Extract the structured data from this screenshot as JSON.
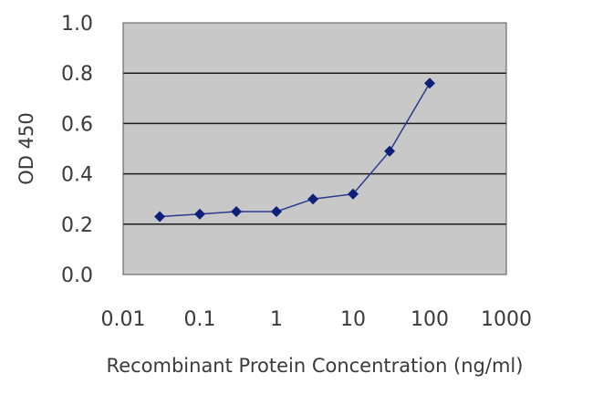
{
  "chart_data": {
    "type": "line",
    "title": "",
    "xlabel": "Recombinant Protein Concentration (ng/ml)",
    "ylabel": "OD 450",
    "x_scale": "log",
    "xlim": [
      0.01,
      1000
    ],
    "ylim": [
      0,
      1.0
    ],
    "x_tick_labels": [
      "0.01",
      "0.1",
      "1",
      "10",
      "100",
      "1000"
    ],
    "y_tick_labels": [
      "0.0",
      "0.2",
      "0.4",
      "0.6",
      "0.8",
      "1.0"
    ],
    "grid": "horizontal",
    "legend": "none",
    "plot_background": "#c8c8c8",
    "line_color": "#2a3a8c",
    "marker_color": "#0d1f78",
    "marker": "diamond",
    "series": [
      {
        "x": [
          0.03,
          0.1,
          0.3,
          1,
          3,
          10,
          30,
          100
        ],
        "y": [
          0.23,
          0.24,
          0.25,
          0.25,
          0.3,
          0.32,
          0.49,
          0.76
        ]
      }
    ]
  }
}
